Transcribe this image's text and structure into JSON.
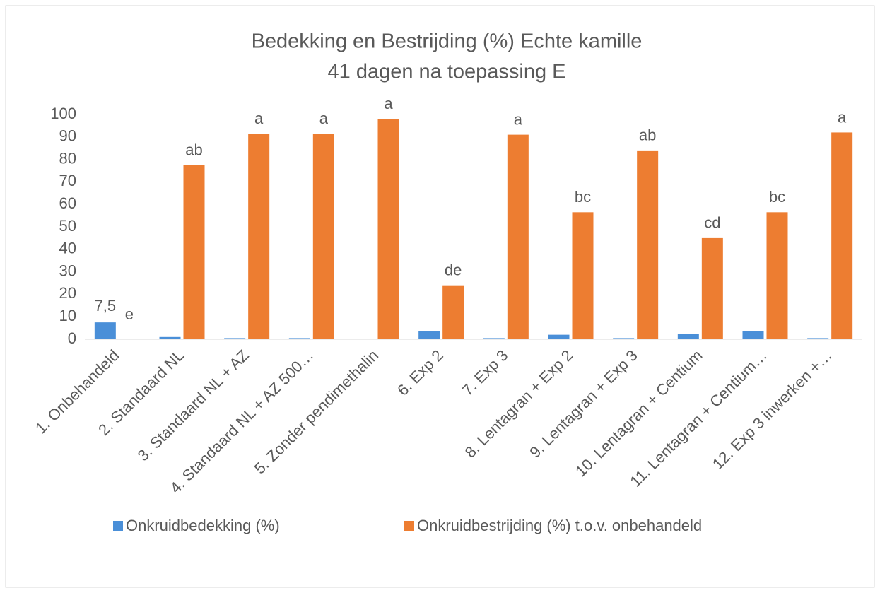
{
  "chart_data": {
    "type": "bar",
    "title": "Bedekking en Bestrijding (%) Echte kamille",
    "subtitle": "41 dagen na toepassing E",
    "categories": [
      "1. Onbehandeld",
      "2. Standaard NL",
      "3. Standaard NL + AZ",
      "4. Standaard NL + AZ 500…",
      "5. Zonder pendimethalin",
      "6. Exp 2",
      "7. Exp 3",
      "8. Lentagran + Exp 2",
      "9. Lentagran + Exp 3",
      "10. Lentagran + Centium",
      "11. Lentagran + Centium…",
      "12. Exp 3 inwerken +…"
    ],
    "series": [
      {
        "name": "Onkruidbedekking (%)",
        "color": "#4a8fd8",
        "values": [
          7.5,
          1,
          0.5,
          0.5,
          0,
          3.5,
          0.5,
          2,
          0.5,
          2.5,
          3.5,
          0.5
        ],
        "value_labels": [
          "7,5",
          null,
          null,
          null,
          null,
          null,
          null,
          null,
          null,
          null,
          null,
          null
        ]
      },
      {
        "name": "Onkruidbestrijding (%) t.o.v. onbehandeld",
        "color": "#ed7d31",
        "values": [
          0,
          77.5,
          91.5,
          91.5,
          98,
          24,
          91,
          56.5,
          84,
          45,
          56.5,
          92
        ],
        "annotations": [
          "e",
          "ab",
          "a",
          "a",
          "a",
          "de",
          "a",
          "bc",
          "ab",
          "cd",
          "bc",
          "a"
        ]
      }
    ],
    "ylim": [
      0,
      100
    ],
    "yticks": [
      0,
      10,
      20,
      30,
      40,
      50,
      60,
      70,
      80,
      90,
      100
    ],
    "grid": false,
    "legend": "bottom"
  }
}
